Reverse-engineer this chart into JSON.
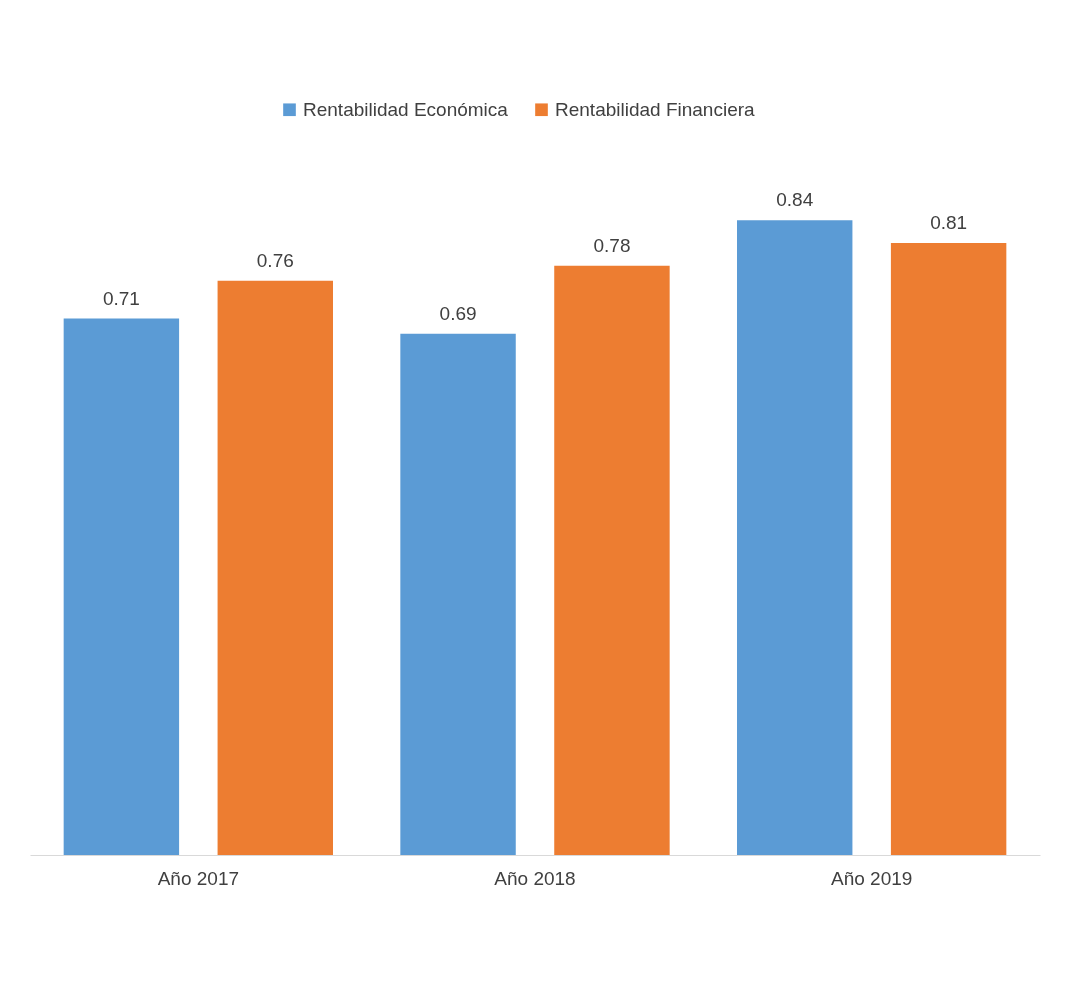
{
  "chart_data": {
    "type": "bar",
    "categories": [
      "Año 2017",
      "Año 2018",
      "Año 2019"
    ],
    "series": [
      {
        "name": "Rentabilidad Económica",
        "color": "#5b9bd5",
        "values": [
          0.71,
          0.69,
          0.84
        ]
      },
      {
        "name": "Rentabilidad Financiera",
        "color": "#ed7d31",
        "values": [
          0.76,
          0.78,
          0.81
        ]
      }
    ],
    "data_labels": true,
    "legend": "top",
    "grid": false
  }
}
